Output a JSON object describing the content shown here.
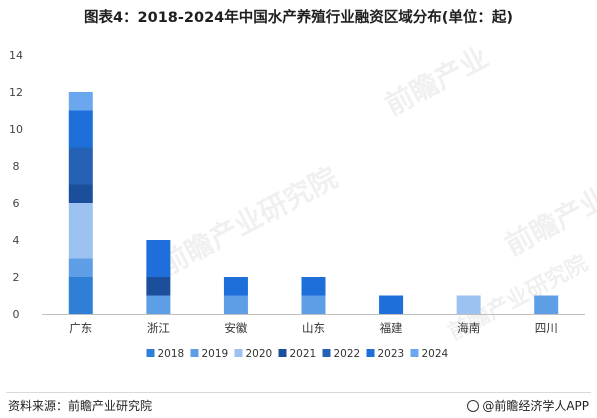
{
  "title": "图表4：2018-2024年中国水产养殖行业融资区域分布(单位：起)",
  "footer": {
    "source": "资料来源：前瞻产业研究院",
    "brand": "@前瞻经济学人APP"
  },
  "watermarks": [
    "前瞻产业研究院",
    "前瞻产业",
    "前瞻产业",
    "前瞻产业研究院"
  ],
  "colors": {
    "2018": "#2f7fd6",
    "2019": "#5e9ee6",
    "2020": "#9cc2f2",
    "2021": "#1b4f9c",
    "2022": "#2561b5",
    "2023": "#1e6fd9",
    "2024": "#6aa7ee"
  },
  "chart_data": {
    "type": "bar",
    "stacked": true,
    "categories": [
      "广东",
      "浙江",
      "安徽",
      "山东",
      "福建",
      "海南",
      "四川"
    ],
    "series": [
      {
        "name": "2018",
        "values": [
          2,
          0,
          0,
          0,
          0,
          0,
          0
        ]
      },
      {
        "name": "2019",
        "values": [
          1,
          1,
          1,
          1,
          0,
          0,
          1
        ]
      },
      {
        "name": "2020",
        "values": [
          3,
          0,
          0,
          0,
          0,
          1,
          0
        ]
      },
      {
        "name": "2021",
        "values": [
          1,
          1,
          0,
          0,
          0,
          0,
          0
        ]
      },
      {
        "name": "2022",
        "values": [
          2,
          0,
          0,
          0,
          0,
          0,
          0
        ]
      },
      {
        "name": "2023",
        "values": [
          2,
          2,
          1,
          1,
          1,
          0,
          0
        ]
      },
      {
        "name": "2024",
        "values": [
          1,
          0,
          0,
          0,
          0,
          0,
          0
        ]
      }
    ],
    "ylim": [
      0,
      14
    ],
    "yticks": [
      0,
      2,
      4,
      6,
      8,
      10,
      12,
      14
    ],
    "xlabel": "",
    "ylabel": "",
    "grid": false,
    "legend": "bottom"
  }
}
